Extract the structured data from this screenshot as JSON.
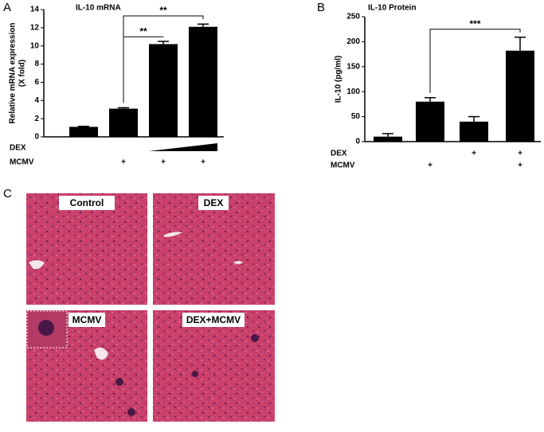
{
  "chart_data": [
    {
      "type": "bar",
      "panel": "A",
      "title": "IL-10 mRNA",
      "ylabel": [
        "Relative mRNA expression",
        "(X fold)"
      ],
      "values": [
        1.1,
        3.1,
        10.2,
        12.1
      ],
      "errors": [
        0.05,
        0.1,
        0.3,
        0.3
      ],
      "color": "#000000",
      "ylim": [
        0,
        14
      ],
      "yticks": [
        0,
        2,
        4,
        6,
        8,
        10,
        12,
        14
      ],
      "rows": [
        {
          "label": "DEX",
          "marks": [
            null,
            null,
            null,
            null
          ],
          "ramp": [
            2,
            3
          ]
        },
        {
          "label": "MCMV",
          "marks": [
            null,
            "+",
            "+",
            "+"
          ]
        }
      ],
      "annotations": [
        {
          "text": "**",
          "from": 1,
          "to": 2,
          "y": 11
        },
        {
          "text": "**",
          "from": 1,
          "to": 3,
          "y": 13.3
        }
      ]
    },
    {
      "type": "bar",
      "panel": "B",
      "title": "IL-10 Protein",
      "ylabel": [
        "IL-10 (pg/ml)"
      ],
      "values": [
        10,
        80,
        40,
        182
      ],
      "errors": [
        6,
        8,
        10,
        27
      ],
      "color": "#000000",
      "ylim": [
        0,
        250
      ],
      "yticks": [
        0,
        50,
        100,
        150,
        200,
        250
      ],
      "rows": [
        {
          "label": "DEX",
          "marks": [
            null,
            null,
            "+",
            "+"
          ]
        },
        {
          "label": "MCMV",
          "marks": [
            null,
            "+",
            null,
            "+"
          ]
        }
      ],
      "annotations": [
        {
          "text": "***",
          "from": 1,
          "to": 3,
          "y": 225
        }
      ]
    }
  ],
  "panel_c": {
    "letter": "C",
    "images": [
      "Control",
      "DEX",
      "MCMV",
      "DEX+MCMV"
    ]
  }
}
